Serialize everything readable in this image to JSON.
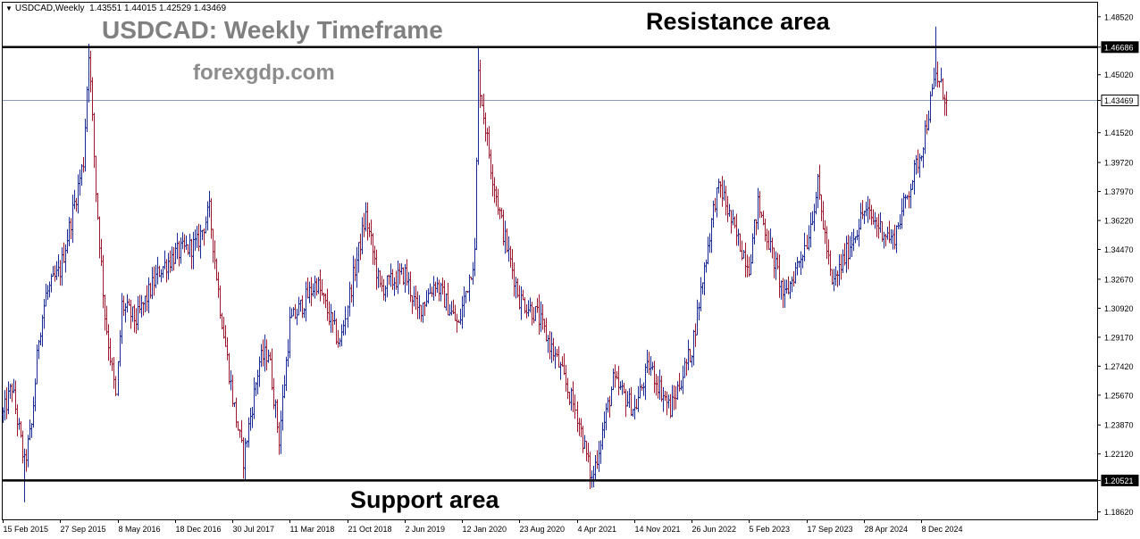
{
  "header": {
    "symbol_tf": "USDCAD,Weekly",
    "ohlc": "1.43551 1.44015 1.42529 1.43469"
  },
  "watermark": {
    "title": "USDCAD: Weekly Timeframe",
    "site": "forexgdp.com"
  },
  "colors": {
    "bar_up": "#1a2a99",
    "bar_down": "#a01830",
    "level_line": "#000000",
    "current_price_line": "#8c9cb8",
    "axis": "#000000",
    "background": "#ffffff"
  },
  "chart_data": {
    "type": "bar",
    "title": "USDCAD: Weekly Timeframe",
    "symbol": "USDCAD",
    "timeframe": "Weekly",
    "grid": false,
    "ylim": [
      1.1817,
      1.4937
    ],
    "y_ticks": [
      "1.48520",
      "1.46686",
      "1.45020",
      "1.43469",
      "1.41520",
      "1.39720",
      "1.37970",
      "1.36220",
      "1.34470",
      "1.32670",
      "1.30920",
      "1.29170",
      "1.27420",
      "1.25670",
      "1.23870",
      "1.22120",
      "1.20521",
      "1.18620"
    ],
    "x_ticks": [
      "15 Feb 2015",
      "27 Sep 2015",
      "8 May 2016",
      "18 Dec 2016",
      "30 Jul 2017",
      "11 Mar 2018",
      "21 Oct 2018",
      "2 Jun 2019",
      "12 Jan 2020",
      "23 Aug 2020",
      "4 Apr 2021",
      "14 Nov 2021",
      "26 Jun 2022",
      "5 Feb 2023",
      "17 Sep 2023",
      "28 Apr 2024",
      "8 Dec 2024"
    ],
    "levels": [
      {
        "label": "Resistance area",
        "price": 1.46686
      },
      {
        "label": "Support area",
        "price": 1.20521
      }
    ],
    "current_price": 1.43469,
    "last_bar": {
      "open": 1.43551,
      "high": 1.44015,
      "low": 1.42529,
      "close": 1.43469
    },
    "approx_close_path": [
      [
        "15 Feb 2015",
        1.245
      ],
      [
        "22 Mar 2015",
        1.262
      ],
      [
        "10 May 2015",
        1.215
      ],
      [
        "7 Jun 2015",
        1.238
      ],
      [
        "5 Jul 2015",
        1.292
      ],
      [
        "2 Aug 2015",
        1.317
      ],
      [
        "30 Aug 2015",
        1.325
      ],
      [
        "27 Sep 2015",
        1.332
      ],
      [
        "27 Dec 2015",
        1.398
      ],
      [
        "17 Jan 2016",
        1.465
      ],
      [
        "14 Feb 2016",
        1.38
      ],
      [
        "20 Mar 2016",
        1.305
      ],
      [
        "1 May 2016",
        1.255
      ],
      [
        "22 May 2016",
        1.311
      ],
      [
        "17 Jul 2016",
        1.302
      ],
      [
        "16 Oct 2016",
        1.332
      ],
      [
        "18 Dec 2016",
        1.342
      ],
      [
        "12 Mar 2017",
        1.348
      ],
      [
        "30 Apr 2017",
        1.368
      ],
      [
        "11 Jun 2017",
        1.31
      ],
      [
        "30 Jul 2017",
        1.255
      ],
      [
        "10 Sep 2017",
        1.218
      ],
      [
        "12 Nov 2017",
        1.277
      ],
      [
        "17 Dec 2017",
        1.283
      ],
      [
        "28 Jan 2018",
        1.23
      ],
      [
        "11 Mar 2018",
        1.3
      ],
      [
        "24 Jun 2018",
        1.325
      ],
      [
        "23 Sep 2018",
        1.287
      ],
      [
        "21 Oct 2018",
        1.312
      ],
      [
        "30 Dec 2018",
        1.365
      ],
      [
        "24 Feb 2019",
        1.321
      ],
      [
        "2 Jun 2019",
        1.33
      ],
      [
        "21 Jul 2019",
        1.307
      ],
      [
        "29 Sep 2019",
        1.325
      ],
      [
        "29 Dec 2019",
        1.298
      ],
      [
        "12 Jan 2020",
        1.31
      ],
      [
        "1 Mar 2020",
        1.342
      ],
      [
        "15 Mar 2020",
        1.45
      ],
      [
        "3 May 2020",
        1.395
      ],
      [
        "21 Jun 2020",
        1.355
      ],
      [
        "23 Aug 2020",
        1.315
      ],
      [
        "1 Nov 2020",
        1.305
      ],
      [
        "24 Jan 2021",
        1.275
      ],
      [
        "4 Apr 2021",
        1.245
      ],
      [
        "30 May 2021",
        1.205
      ],
      [
        "22 Aug 2021",
        1.265
      ],
      [
        "14 Nov 2021",
        1.248
      ],
      [
        "9 Jan 2022",
        1.275
      ],
      [
        "3 Apr 2022",
        1.248
      ],
      [
        "26 Jun 2022",
        1.285
      ],
      [
        "25 Sep 2022",
        1.375
      ],
      [
        "16 Oct 2022",
        1.382
      ],
      [
        "11 Dec 2022",
        1.355
      ],
      [
        "5 Feb 2023",
        1.335
      ],
      [
        "12 Mar 2023",
        1.372
      ],
      [
        "25 Jun 2023",
        1.315
      ],
      [
        "17 Sep 2023",
        1.35
      ],
      [
        "29 Oct 2023",
        1.383
      ],
      [
        "24 Dec 2023",
        1.322
      ],
      [
        "28 Apr 2024",
        1.368
      ],
      [
        "18 Aug 2024",
        1.35
      ],
      [
        "8 Dec 2024",
        1.405
      ],
      [
        "2 Feb 2025",
        1.45
      ],
      [
        "16 Mar 2025",
        1.435
      ]
    ]
  }
}
